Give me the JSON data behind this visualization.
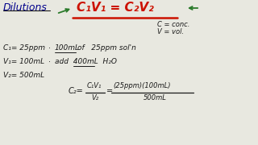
{
  "bg_color": "#e8e8e0",
  "black": "#1a1a1a",
  "dark_blue": "#00008B",
  "red": "#cc1100",
  "green": "#2a7a2a",
  "border_color": "#111111",
  "title": "Dilutions",
  "formula": "C₁V₁ = C₂V₂",
  "legend_c": "C = conc.",
  "legend_v": "V = vol.",
  "l1a": "C₁= 25ppm",
  "l1b": "·",
  "l1c": "100mL",
  "l1d": "of   25ppm sol'n",
  "l2a": "V₁= 100mL",
  "l2b": "·",
  "l2c": "add  400mL  H₂O",
  "l3": "V₂= 500mL",
  "calc_c2": "C₂=",
  "calc_num1": "C₁V₁",
  "calc_den1": "V₂",
  "calc_num2": "(25ppm)(100mL)",
  "calc_den2": "500mL"
}
